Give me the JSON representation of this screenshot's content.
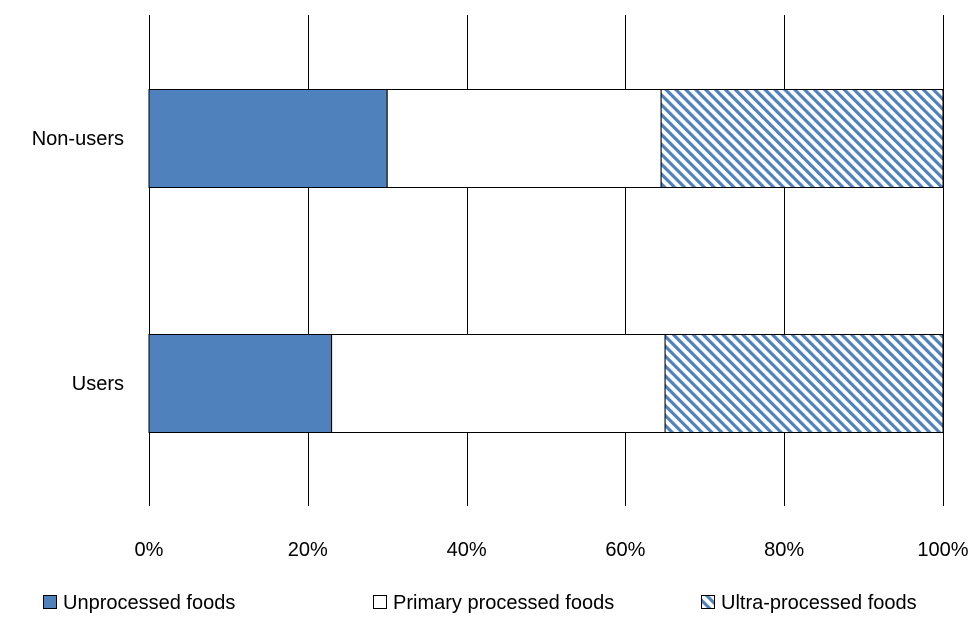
{
  "chart_data": {
    "type": "bar",
    "orientation": "horizontal",
    "stacked": "percent",
    "categories": [
      "Non-users",
      "Users"
    ],
    "series": [
      {
        "name": "Unprocessed foods",
        "values": [
          30,
          23
        ],
        "color": "#4F81BD",
        "pattern": "solid"
      },
      {
        "name": "Primary processed foods",
        "values": [
          34.5,
          42
        ],
        "color": "#FFFFFF",
        "pattern": "solid"
      },
      {
        "name": "Ultra-processed foods",
        "values": [
          35.5,
          35
        ],
        "color": "#4F81BD",
        "pattern": "diagonal-stripes"
      }
    ],
    "xlim": [
      0,
      100
    ],
    "xticks": [
      0,
      20,
      40,
      60,
      80,
      100
    ],
    "xtick_labels": [
      "0%",
      "20%",
      "40%",
      "60%",
      "80%",
      "100%"
    ],
    "grid": "vertical",
    "legend_position": "bottom"
  }
}
